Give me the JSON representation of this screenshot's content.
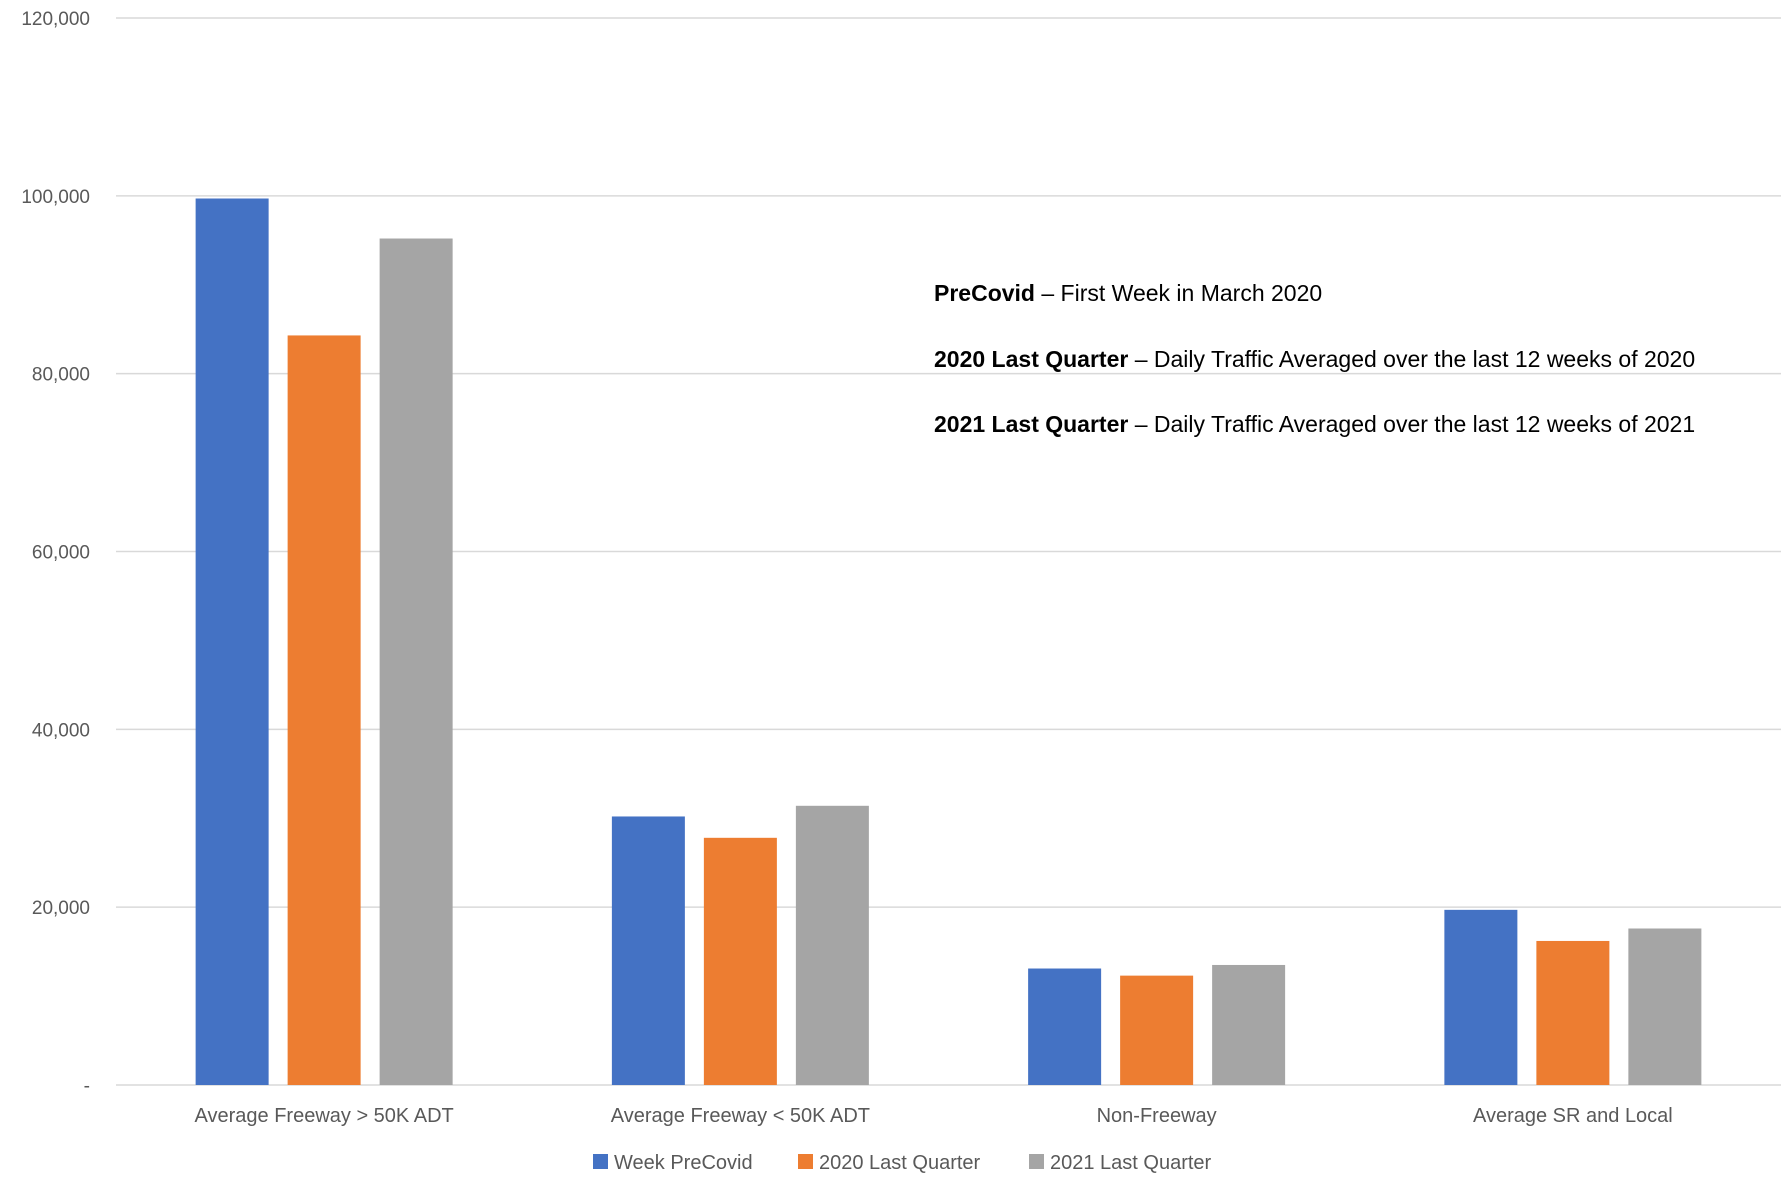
{
  "chart_data": {
    "type": "bar",
    "categories": [
      "Average Freeway > 50K ADT",
      "Average Freeway < 50K ADT",
      "Non-Freeway",
      "Average SR and Local"
    ],
    "series": [
      {
        "name": "Week PreCovid",
        "color": "#4472C4",
        "values": [
          99700,
          30200,
          13100,
          19700
        ]
      },
      {
        "name": "2020 Last Quarter",
        "color": "#ED7D31",
        "values": [
          84300,
          27800,
          12300,
          16200
        ]
      },
      {
        "name": "2021 Last Quarter",
        "color": "#A5A5A5",
        "values": [
          95200,
          31400,
          13500,
          17600
        ]
      }
    ],
    "ylim": [
      0,
      120000
    ],
    "yticks": [
      0,
      20000,
      40000,
      60000,
      80000,
      100000,
      120000
    ],
    "ytick_labels": [
      "-",
      "20,000",
      "40,000",
      "60,000",
      "80,000",
      "100,000",
      "120,000"
    ],
    "grid": true,
    "legend": "bottom",
    "annotations": [
      {
        "bold": "PreCovid",
        "text": " – First Week in March 2020"
      },
      {
        "bold": "2020 Last Quarter",
        "text": " – Daily Traffic Averaged over the last 12 weeks of 2020"
      },
      {
        "bold": "2021 Last Quarter",
        "text": " – Daily Traffic Averaged over the last 12 weeks of 2021"
      }
    ],
    "colors": {
      "grid": "#D9D9D9",
      "text": "#595959"
    }
  }
}
